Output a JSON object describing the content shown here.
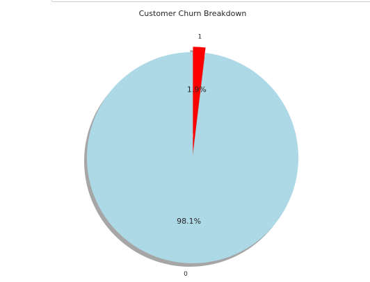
{
  "chart_data": {
    "type": "pie",
    "title": "Customer Churn Breakdown",
    "categories": [
      "0",
      "1"
    ],
    "values": [
      98.1,
      1.9
    ],
    "percent_labels": [
      "98.1%",
      "1.9%"
    ],
    "colors": [
      "#add8e6",
      "#ff0000"
    ],
    "explode": [
      0,
      0.05
    ],
    "start_angle": 90,
    "shadow": true
  }
}
